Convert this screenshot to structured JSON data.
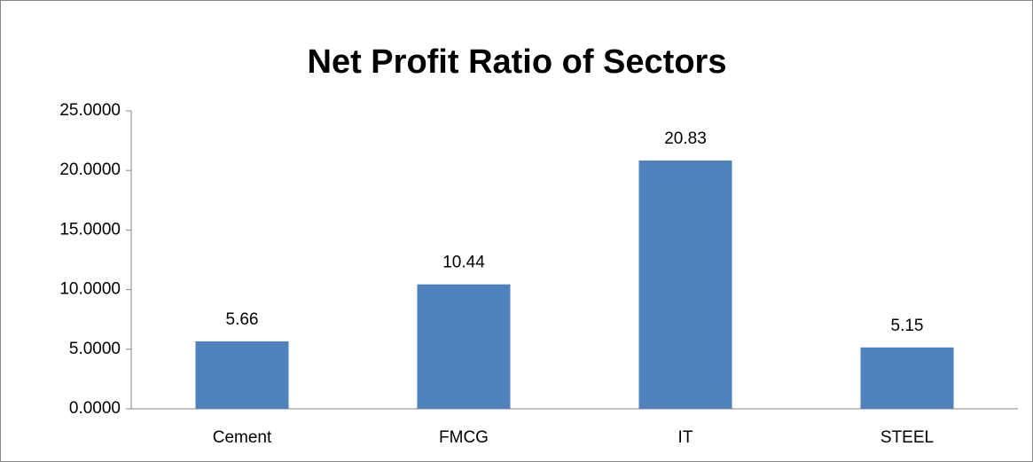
{
  "chart_data": {
    "type": "bar",
    "title": "Net Profit Ratio of Sectors",
    "categories": [
      "Cement",
      "FMCG",
      "IT",
      "STEEL"
    ],
    "values": [
      5.66,
      10.44,
      20.83,
      5.15
    ],
    "color": "#4f81bd",
    "ylim": [
      0,
      25
    ],
    "yticks": [
      {
        "value": 0,
        "label": "0.0000"
      },
      {
        "value": 5,
        "label": "5.0000"
      },
      {
        "value": 10,
        "label": "10.0000"
      },
      {
        "value": 15,
        "label": "15.0000"
      },
      {
        "value": 20,
        "label": "20.0000"
      },
      {
        "value": 25,
        "label": "25.0000"
      }
    ],
    "grid": false
  }
}
